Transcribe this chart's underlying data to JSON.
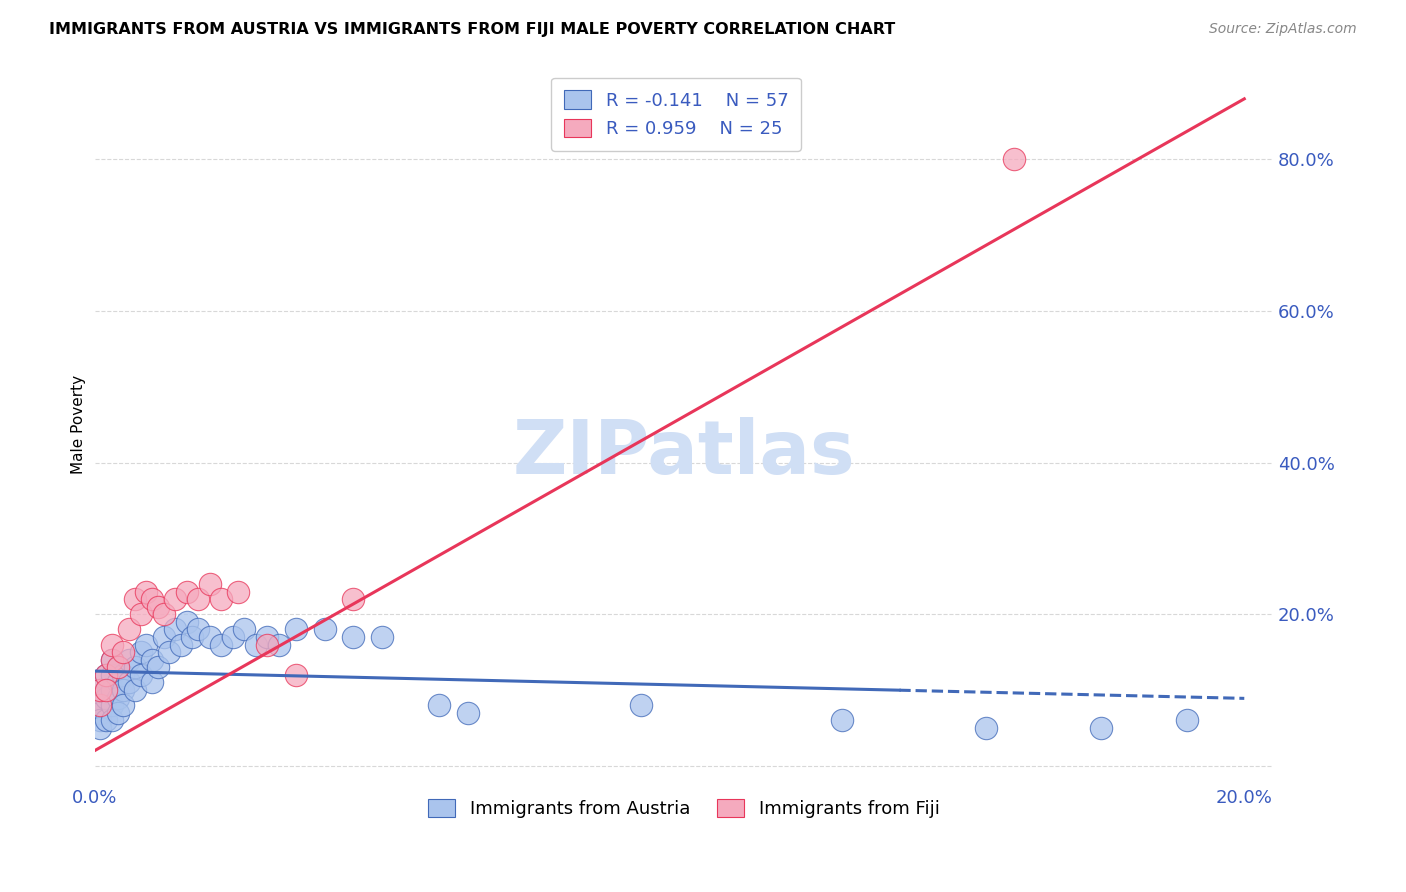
{
  "title": "IMMIGRANTS FROM AUSTRIA VS IMMIGRANTS FROM FIJI MALE POVERTY CORRELATION CHART",
  "source": "Source: ZipAtlas.com",
  "ylabel": "Male Poverty",
  "xlim": [
    0.0,
    0.205
  ],
  "ylim": [
    -0.02,
    0.92
  ],
  "ytick_vals": [
    0.0,
    0.2,
    0.4,
    0.6,
    0.8
  ],
  "xtick_vals": [
    0.0,
    0.04,
    0.08,
    0.12,
    0.16,
    0.2
  ],
  "austria_color": "#aac4ed",
  "fiji_color": "#f5aabe",
  "austria_line_color": "#4169b8",
  "fiji_line_color": "#e8365a",
  "austria_R": -0.141,
  "austria_N": 57,
  "fiji_R": 0.959,
  "fiji_N": 25,
  "watermark": "ZIPatlas",
  "watermark_color": "#d0dff5",
  "legend_label_austria": "Immigrants from Austria",
  "legend_label_fiji": "Immigrants from Fiji",
  "legend_text_color": "#3a5bbf",
  "background_color": "#ffffff",
  "grid_color": "#d8d8d8",
  "austria_x": [
    0.001,
    0.001,
    0.001,
    0.001,
    0.001,
    0.001,
    0.002,
    0.002,
    0.002,
    0.002,
    0.003,
    0.003,
    0.003,
    0.003,
    0.003,
    0.004,
    0.004,
    0.004,
    0.004,
    0.005,
    0.005,
    0.005,
    0.006,
    0.006,
    0.007,
    0.007,
    0.008,
    0.008,
    0.009,
    0.01,
    0.01,
    0.011,
    0.012,
    0.013,
    0.014,
    0.015,
    0.016,
    0.017,
    0.018,
    0.02,
    0.022,
    0.024,
    0.026,
    0.028,
    0.03,
    0.032,
    0.035,
    0.04,
    0.045,
    0.05,
    0.06,
    0.065,
    0.095,
    0.13,
    0.155,
    0.175,
    0.19
  ],
  "austria_y": [
    0.1,
    0.09,
    0.08,
    0.07,
    0.06,
    0.05,
    0.12,
    0.1,
    0.09,
    0.06,
    0.14,
    0.12,
    0.1,
    0.08,
    0.06,
    0.13,
    0.11,
    0.09,
    0.07,
    0.12,
    0.1,
    0.08,
    0.14,
    0.11,
    0.13,
    0.1,
    0.15,
    0.12,
    0.16,
    0.14,
    0.11,
    0.13,
    0.17,
    0.15,
    0.18,
    0.16,
    0.19,
    0.17,
    0.18,
    0.17,
    0.16,
    0.17,
    0.18,
    0.16,
    0.17,
    0.16,
    0.18,
    0.18,
    0.17,
    0.17,
    0.08,
    0.07,
    0.08,
    0.06,
    0.05,
    0.05,
    0.06
  ],
  "fiji_x": [
    0.001,
    0.001,
    0.002,
    0.002,
    0.003,
    0.003,
    0.004,
    0.005,
    0.006,
    0.007,
    0.008,
    0.009,
    0.01,
    0.011,
    0.012,
    0.014,
    0.016,
    0.018,
    0.02,
    0.022,
    0.025,
    0.03,
    0.035,
    0.045,
    0.16
  ],
  "fiji_y": [
    0.08,
    0.1,
    0.12,
    0.1,
    0.14,
    0.16,
    0.13,
    0.15,
    0.18,
    0.22,
    0.2,
    0.23,
    0.22,
    0.21,
    0.2,
    0.22,
    0.23,
    0.22,
    0.24,
    0.22,
    0.23,
    0.16,
    0.12,
    0.22,
    0.8
  ],
  "austria_line_x": [
    0.0,
    0.14,
    0.2
  ],
  "austria_line_y_intercept": 0.125,
  "austria_line_slope": -0.18,
  "fiji_line_x": [
    0.0,
    0.2
  ],
  "fiji_line_y_at_0": 0.02,
  "fiji_line_y_at_20pct": 0.88
}
